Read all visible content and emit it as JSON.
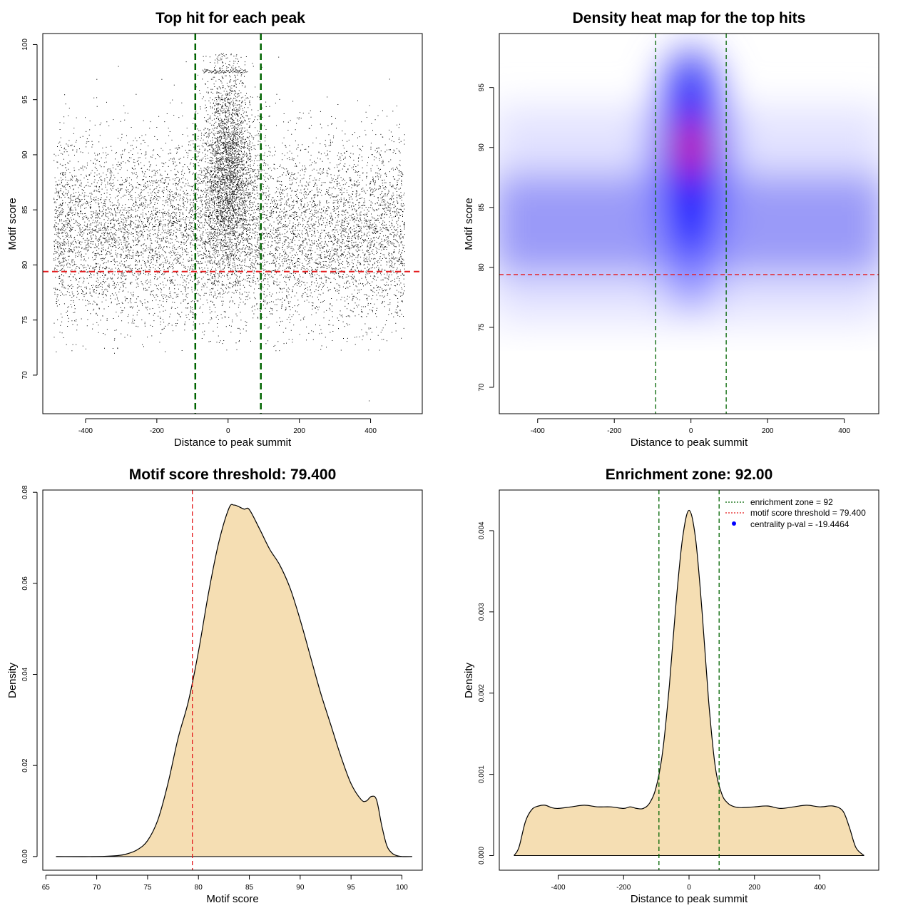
{
  "colors": {
    "threshold": "#e41a1c",
    "zone": "#006400",
    "fill": "#f5deb3",
    "points": "#000000",
    "heat_low": "#ffffff",
    "heat_mid": "#0000ff",
    "heat_high": "#ff0000",
    "legend_point": "#0000ff"
  },
  "chart_data": [
    {
      "id": "scatter",
      "type": "scatter",
      "title": "Top hit for each peak",
      "xlabel": "Distance to peak summit",
      "ylabel": "Motif score",
      "xlim": [
        -520,
        545
      ],
      "ylim": [
        66.5,
        101
      ],
      "xticks": [
        -400,
        -200,
        0,
        200,
        400
      ],
      "yticks": [
        70,
        75,
        80,
        85,
        90,
        95,
        100
      ],
      "hline": 79.4,
      "vlines": [
        -92,
        92
      ],
      "point_density": {
        "background": {
          "x_range": [
            -490,
            495
          ],
          "mean": 83,
          "sd": 4.2,
          "count": 9000
        },
        "central": {
          "x_center": 0,
          "x_sd": 35,
          "mean": 89,
          "sd": 4.5,
          "count": 8000
        },
        "upper_edge": {
          "y": 97.6,
          "x_range": [
            -70,
            50
          ]
        }
      },
      "outliers": [
        [
          -400,
          72.4
        ],
        [
          395,
          67.7
        ],
        [
          -320,
          73.2
        ],
        [
          -50,
          73.1
        ]
      ]
    },
    {
      "id": "heatmap",
      "type": "heatmap",
      "title": "Density heat map for the top hits",
      "xlabel": "Distance to peak summit",
      "ylabel": "Motif score",
      "xlim": [
        -500,
        490
      ],
      "ylim": [
        67.8,
        99.5
      ],
      "xticks": [
        -400,
        -200,
        0,
        200,
        400
      ],
      "yticks": [
        70,
        75,
        80,
        85,
        90,
        95
      ],
      "hline": 79.4,
      "vlines": [
        -92,
        92
      ],
      "hotspot": {
        "x": 0,
        "y": 90
      },
      "background_band": {
        "y": 83,
        "sd": 4.0
      }
    },
    {
      "id": "score_density",
      "type": "area",
      "title": "Motif score threshold: 79.400",
      "xlabel": "Motif score",
      "ylabel": "Density",
      "xlim": [
        64.7,
        102
      ],
      "ylim": [
        -0.003,
        0.0805
      ],
      "xticks": [
        65,
        70,
        75,
        80,
        85,
        90,
        95,
        100
      ],
      "yticks": [
        0.0,
        0.02,
        0.04,
        0.06,
        0.08
      ],
      "ytick_labels": [
        "0.00",
        "0.02",
        "0.04",
        "0.06",
        "0.08"
      ],
      "vline": 79.4,
      "x": [
        66,
        70,
        72,
        73,
        74,
        75,
        76,
        77,
        78,
        79,
        80,
        81,
        82,
        83,
        83.5,
        84,
        84.5,
        85,
        86,
        87,
        88,
        89,
        90,
        91,
        92,
        93,
        94,
        95,
        96,
        96.5,
        97,
        97.5,
        98,
        98.5,
        99,
        99.5,
        100,
        101
      ],
      "y": [
        0.0,
        0.0,
        0.0002,
        0.0006,
        0.0015,
        0.0035,
        0.008,
        0.016,
        0.026,
        0.034,
        0.045,
        0.058,
        0.069,
        0.0765,
        0.0772,
        0.0768,
        0.0763,
        0.0762,
        0.072,
        0.0675,
        0.064,
        0.059,
        0.052,
        0.044,
        0.036,
        0.029,
        0.022,
        0.016,
        0.0125,
        0.0122,
        0.0132,
        0.0125,
        0.007,
        0.0025,
        0.0008,
        0.0002,
        0.0,
        0.0
      ]
    },
    {
      "id": "distance_density",
      "type": "area",
      "title": "Enrichment zone: 92.00",
      "xlabel": "Distance to peak summit",
      "ylabel": "Density",
      "xlim": [
        -580,
        580
      ],
      "ylim": [
        -0.00018,
        0.0045
      ],
      "xticks": [
        -400,
        -200,
        0,
        200,
        400
      ],
      "yticks": [
        0.0,
        0.001,
        0.002,
        0.003,
        0.004
      ],
      "ytick_labels": [
        "0.000",
        "0.001",
        "0.002",
        "0.003",
        "0.004"
      ],
      "vlines": [
        -92,
        92
      ],
      "x": [
        -535,
        -520,
        -500,
        -480,
        -460,
        -440,
        -420,
        -400,
        -360,
        -320,
        -280,
        -240,
        -200,
        -180,
        -160,
        -140,
        -120,
        -100,
        -80,
        -60,
        -40,
        -20,
        0,
        20,
        40,
        60,
        80,
        100,
        120,
        140,
        160,
        200,
        240,
        280,
        320,
        360,
        400,
        440,
        470,
        490,
        510,
        535
      ],
      "y": [
        0.0,
        0.0001,
        0.00042,
        0.00057,
        0.00061,
        0.00062,
        0.00059,
        0.00058,
        0.0006,
        0.00062,
        0.0006,
        0.0006,
        0.00058,
        0.0006,
        0.00058,
        0.00058,
        0.00065,
        0.00085,
        0.0013,
        0.0021,
        0.0031,
        0.0039,
        0.00425,
        0.0039,
        0.003,
        0.0019,
        0.0011,
        0.00076,
        0.00064,
        0.0006,
        0.00059,
        0.0006,
        0.00061,
        0.00058,
        0.0006,
        0.00062,
        0.0006,
        0.00061,
        0.00055,
        0.00035,
        0.0001,
        0.0
      ]
    }
  ],
  "legend": {
    "zone_label": "enrichment zone = 92",
    "threshold_label": "motif score threshold = 79.400",
    "pval_label": "centrality p-val = -19.4464"
  }
}
